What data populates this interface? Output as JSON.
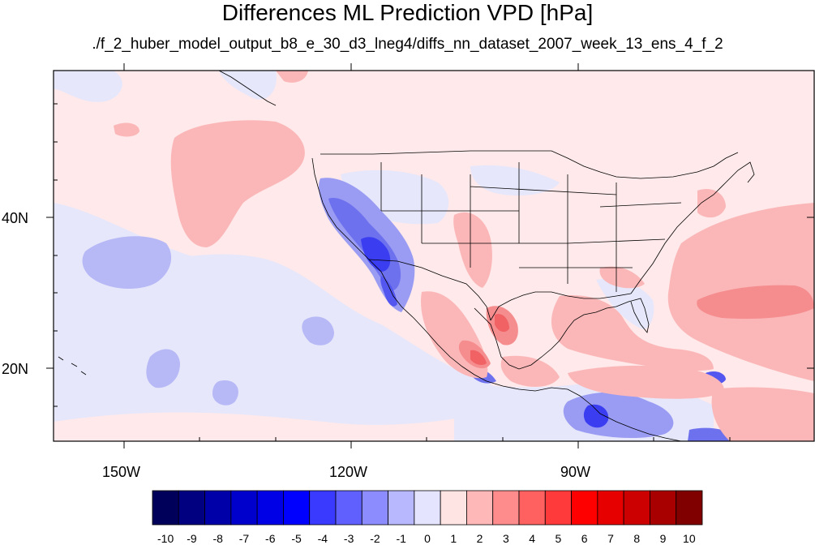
{
  "title": "Differences ML Prediction VPD [hPa]",
  "subtitle": "./f_2_huber_model_output_b8_e_30_d3_lneg4/diffs_nn_dataset_2007_week_13_ens_4_f_2",
  "axes": {
    "lon_labels": [
      "150W",
      "120W",
      "90W"
    ],
    "lat_labels": [
      "40N",
      "20N"
    ]
  },
  "colorbar": {
    "labels": [
      "-10",
      "-9",
      "-8",
      "-7",
      "-6",
      "-5",
      "-4",
      "-3",
      "-2",
      "-1",
      "0",
      "1",
      "2",
      "3",
      "4",
      "5",
      "6",
      "7",
      "8",
      "9",
      "10"
    ],
    "colors": [
      "#00005a",
      "#000080",
      "#0000a8",
      "#0000cc",
      "#0000e6",
      "#0000ff",
      "#3a3aff",
      "#6060ff",
      "#8c8cff",
      "#b8b8ff",
      "#e4e4ff",
      "#ffe4e4",
      "#ffb8b8",
      "#ff8c8c",
      "#ff6060",
      "#ff3a3a",
      "#ff0000",
      "#e60000",
      "#cc0000",
      "#a80000",
      "#800000"
    ]
  }
}
